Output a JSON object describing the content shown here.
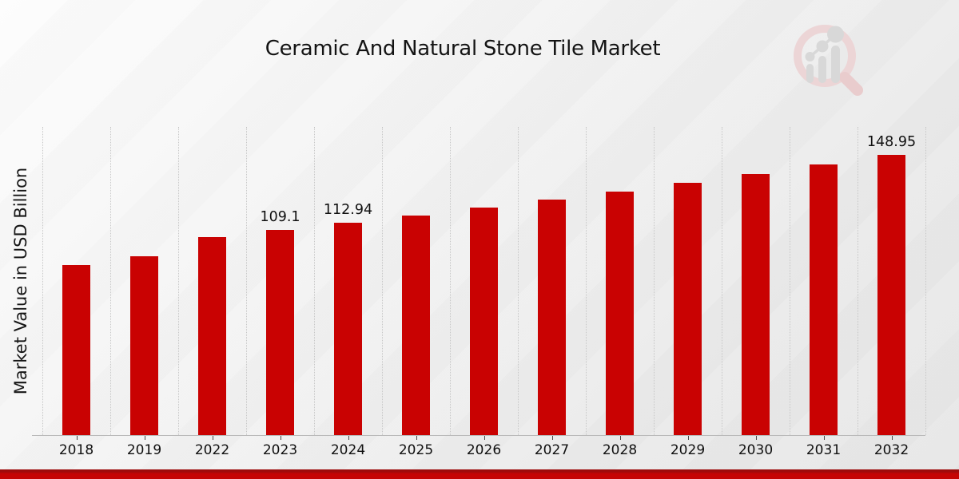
{
  "title": "Ceramic And Natural Stone Tile Market",
  "ylabel": "Market Value in USD Billion",
  "watermark": {
    "icon": "magnifier-bar-chart-logo"
  },
  "footer": {
    "accent_color": "#C50404"
  },
  "chart_data": {
    "type": "bar",
    "title": "Ceramic And Natural Stone Tile Market",
    "xlabel": "",
    "ylabel": "Market Value in USD Billion",
    "unit": "USD Billion",
    "categories": [
      "2018",
      "2019",
      "2022",
      "2023",
      "2024",
      "2025",
      "2026",
      "2027",
      "2028",
      "2029",
      "2030",
      "2031",
      "2032"
    ],
    "values": [
      90.3,
      95.05,
      105.41,
      109.1,
      112.94,
      116.92,
      121.03,
      125.29,
      129.7,
      134.26,
      138.98,
      143.87,
      148.95
    ],
    "bar_labels": [
      "",
      "",
      "",
      "109.1",
      "112.94",
      "",
      "",
      "",
      "",
      "",
      "",
      "",
      "148.95"
    ],
    "bar_color": "#C90202",
    "ylim": [
      0,
      164
    ],
    "grid": "vertical-dotted",
    "legend": false
  }
}
